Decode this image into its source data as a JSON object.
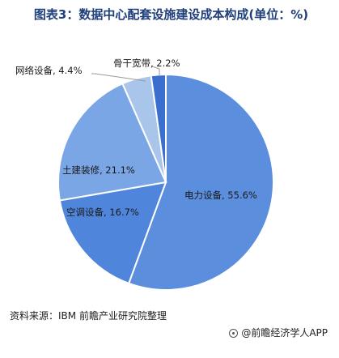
{
  "title": "图表3：数据中心配套设施建设成本构成(单位：%)",
  "source": "资料来源：IBM 前瞻产业研究院整理",
  "brand": "@前瞻经济学人APP",
  "chart_data": {
    "type": "pie",
    "title": "图表3：数据中心配套设施建设成本构成(单位：%)",
    "slices": [
      {
        "label": "电力设备",
        "value": 55.6,
        "display": "电力设备, 55.6%",
        "color": "#5b8fde"
      },
      {
        "label": "空调设备",
        "value": 16.7,
        "display": "空调设备, 16.7%",
        "color": "#4f86db"
      },
      {
        "label": "土建装修",
        "value": 21.1,
        "display": "土建装修, 21.1%",
        "color": "#7aa6e6"
      },
      {
        "label": "网络设备",
        "value": 4.4,
        "display": "网络设备, 4.4%",
        "color": "#a9c6ea"
      },
      {
        "label": "骨干宽带",
        "value": 2.2,
        "display": "骨干宽带, 2.2%",
        "color": "#3a6fcf"
      }
    ]
  }
}
